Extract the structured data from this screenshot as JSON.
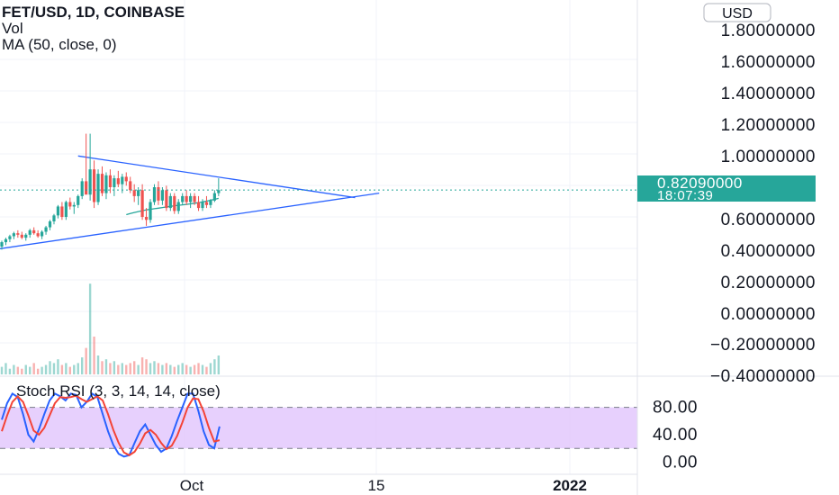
{
  "header": {
    "symbol": "FET/USD, 1D, COINBASE",
    "indicator_vol": "Vol",
    "indicator_ma": "MA (50, close, 0)"
  },
  "currency_button": "USD",
  "price_badge": {
    "price": "0.82090000",
    "countdown": "18:07:39"
  },
  "rsi_title": "Stoch RSI (3, 3, 14, 14, close)",
  "time_labels": [
    "Oct",
    "15",
    "2022"
  ],
  "colors": {
    "up": "#26a69a",
    "down": "#ef5350",
    "trendline": "#2962ff",
    "ma": "#26a69a",
    "rsi_k": "#2962ff",
    "rsi_d": "#f44336",
    "rsi_band": "#e1c4fc"
  },
  "chart_data": [
    {
      "type": "candlestick",
      "y_ticks": [
        "1.80000000",
        "1.60000000",
        "1.40000000",
        "1.20000000",
        "1.00000000",
        "0.60000000",
        "0.40000000",
        "0.20000000",
        "0.00000000",
        "−0.20000000",
        "−0.40000000"
      ],
      "ylim": [
        -0.42,
        1.9
      ],
      "last_price": 0.8209,
      "candles": [
        [
          0.44,
          0.48,
          0.42,
          0.47
        ],
        [
          0.47,
          0.5,
          0.45,
          0.49
        ],
        [
          0.49,
          0.52,
          0.47,
          0.51
        ],
        [
          0.51,
          0.54,
          0.49,
          0.53
        ],
        [
          0.53,
          0.55,
          0.5,
          0.52
        ],
        [
          0.52,
          0.54,
          0.49,
          0.5
        ],
        [
          0.5,
          0.53,
          0.48,
          0.52
        ],
        [
          0.52,
          0.56,
          0.5,
          0.55
        ],
        [
          0.55,
          0.57,
          0.52,
          0.53
        ],
        [
          0.53,
          0.55,
          0.5,
          0.51
        ],
        [
          0.51,
          0.55,
          0.49,
          0.54
        ],
        [
          0.54,
          0.58,
          0.52,
          0.57
        ],
        [
          0.57,
          0.62,
          0.55,
          0.61
        ],
        [
          0.61,
          0.66,
          0.59,
          0.65
        ],
        [
          0.65,
          0.72,
          0.63,
          0.71
        ],
        [
          0.71,
          0.74,
          0.62,
          0.64
        ],
        [
          0.64,
          0.75,
          0.62,
          0.74
        ],
        [
          0.74,
          0.77,
          0.69,
          0.71
        ],
        [
          0.71,
          0.74,
          0.66,
          0.72
        ],
        [
          0.72,
          0.79,
          0.7,
          0.78
        ],
        [
          0.78,
          0.9,
          0.76,
          0.88
        ],
        [
          0.88,
          1.2,
          0.8,
          0.79
        ],
        [
          0.79,
          1.2,
          0.75,
          0.96
        ],
        [
          0.96,
          1.02,
          0.7,
          0.74
        ],
        [
          0.74,
          0.96,
          0.72,
          0.93
        ],
        [
          0.93,
          0.98,
          0.78,
          0.8
        ],
        [
          0.8,
          0.94,
          0.76,
          0.92
        ],
        [
          0.92,
          0.96,
          0.8,
          0.84
        ],
        [
          0.84,
          0.92,
          0.78,
          0.9
        ],
        [
          0.9,
          0.95,
          0.84,
          0.86
        ],
        [
          0.86,
          0.93,
          0.8,
          0.91
        ],
        [
          0.91,
          0.94,
          0.85,
          0.88
        ],
        [
          0.88,
          0.91,
          0.8,
          0.82
        ],
        [
          0.82,
          0.86,
          0.74,
          0.78
        ],
        [
          0.78,
          0.84,
          0.72,
          0.82
        ],
        [
          0.82,
          0.86,
          0.62,
          0.64
        ],
        [
          0.64,
          0.7,
          0.58,
          0.62
        ],
        [
          0.62,
          0.76,
          0.6,
          0.74
        ],
        [
          0.74,
          0.86,
          0.72,
          0.84
        ],
        [
          0.84,
          0.88,
          0.72,
          0.75
        ],
        [
          0.75,
          0.84,
          0.72,
          0.82
        ],
        [
          0.82,
          0.85,
          0.68,
          0.7
        ],
        [
          0.7,
          0.8,
          0.68,
          0.78
        ],
        [
          0.78,
          0.8,
          0.66,
          0.68
        ],
        [
          0.68,
          0.76,
          0.66,
          0.74
        ],
        [
          0.74,
          0.8,
          0.72,
          0.78
        ],
        [
          0.78,
          0.82,
          0.72,
          0.74
        ],
        [
          0.74,
          0.8,
          0.7,
          0.78
        ],
        [
          0.78,
          0.8,
          0.72,
          0.74
        ],
        [
          0.74,
          0.78,
          0.68,
          0.7
        ],
        [
          0.7,
          0.76,
          0.68,
          0.74
        ],
        [
          0.74,
          0.78,
          0.7,
          0.72
        ],
        [
          0.72,
          0.76,
          0.7,
          0.75
        ],
        [
          0.75,
          0.82,
          0.74,
          0.8
        ],
        [
          0.8,
          0.9,
          0.78,
          0.82
        ]
      ],
      "volumes": [
        4,
        6,
        3,
        5,
        4,
        3,
        5,
        4,
        6,
        3,
        4,
        5,
        7,
        6,
        8,
        5,
        6,
        4,
        5,
        6,
        9,
        14,
        48,
        20,
        10,
        7,
        8,
        6,
        7,
        5,
        6,
        5,
        6,
        7,
        5,
        9,
        8,
        6,
        7,
        6,
        5,
        6,
        5,
        4,
        5,
        6,
        5,
        4,
        5,
        6,
        5,
        4,
        6,
        8,
        10
      ],
      "ma_start_index": 31,
      "ma_values": [
        0.655,
        0.663,
        0.67,
        0.676,
        0.682,
        0.687,
        0.691,
        0.695,
        0.699,
        0.703,
        0.707,
        0.711,
        0.715,
        0.718,
        0.721,
        0.724,
        0.728,
        0.732,
        0.736,
        0.741,
        0.746,
        0.752,
        0.758,
        0.765
      ],
      "trendlines": [
        {
          "from": [
            -2,
            0.42
          ],
          "to": [
            94,
            0.8
          ]
        },
        {
          "from": [
            19,
            1.05
          ],
          "to": [
            88,
            0.77
          ]
        }
      ]
    },
    {
      "type": "line",
      "title": "Stoch RSI (3, 3, 14, 14, close)",
      "y_ticks": [
        "80.00",
        "40.00",
        "0.00"
      ],
      "ylim": [
        -10,
        115
      ],
      "bands": [
        20,
        80
      ],
      "series": [
        {
          "values": [
            62,
            86,
            100,
            95,
            70,
            40,
            30,
            48,
            70,
            90,
            100,
            96,
            90,
            100,
            98,
            80,
            88,
            100,
            95,
            70,
            45,
            25,
            12,
            8,
            10,
            28,
            45,
            55,
            40,
            25,
            15,
            20,
            38,
            60,
            80,
            100,
            100,
            75,
            45,
            25,
            20,
            52
          ]
        },
        {
          "values": [
            45,
            68,
            88,
            96,
            88,
            68,
            46,
            40,
            50,
            68,
            86,
            95,
            94,
            95,
            97,
            92,
            88,
            92,
            96,
            90,
            70,
            47,
            28,
            14,
            10,
            15,
            27,
            42,
            47,
            40,
            28,
            19,
            24,
            38,
            58,
            80,
            93,
            92,
            74,
            50,
            30,
            32
          ]
        }
      ]
    }
  ]
}
